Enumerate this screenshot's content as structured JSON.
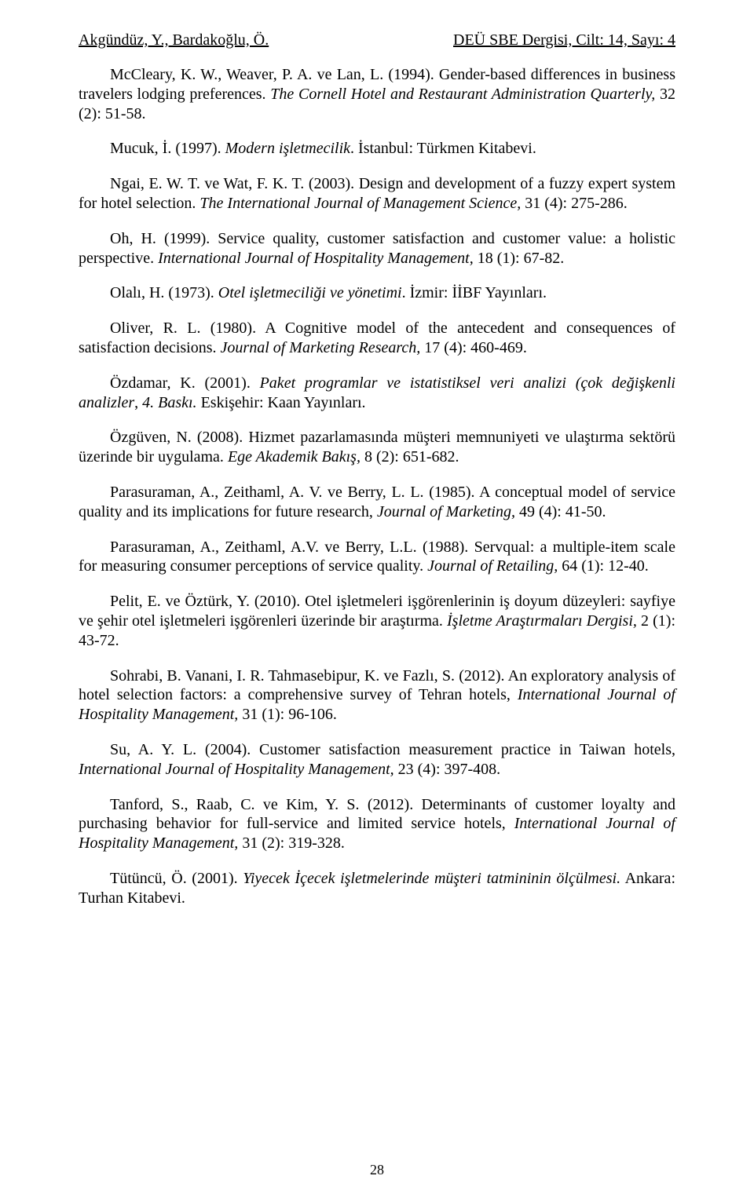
{
  "header": {
    "left": "Akgündüz, Y., Bardakoğlu, Ö.",
    "right": "DEÜ SBE Dergisi, Cilt:  14, Sayı: 4"
  },
  "refs": {
    "r1a": "McCleary, K. W., Weaver, P. A. ve Lan, L. (1994). Gender-based differences in business travelers lodging preferences. ",
    "r1b": "The Cornell Hotel and Restaurant Administration Quarterly,",
    "r1c": " 32 (2): 51-58.",
    "r2a": "Mucuk, İ. (1997). ",
    "r2b": "Modern işletmecilik",
    "r2c": ". İstanbul: Türkmen Kitabevi.",
    "r3a": "Ngai, E. W. T. ve Wat, F. K. T. (2003). Design and development of a fuzzy expert system for hotel selection. ",
    "r3b": "The International Journal of Management Science,",
    "r3c": " 31 (4): 275-286.",
    "r4a": "Oh, H. (1999). Service quality, customer satisfaction and customer value: a holistic perspective. ",
    "r4b": "International Journal of Hospitality Management,",
    "r4c": " 18 (1): 67-82.",
    "r5a": "Olalı, H. (1973). ",
    "r5b": "Otel işletmeciliği ve yönetimi",
    "r5c": ". İzmir: İİBF Yayınları.",
    "r6a": "Oliver, R. L. (1980). A Cognitive model of the antecedent and consequences of satisfaction decisions. ",
    "r6b": "Journal of Marketing Research,",
    "r6c": " 17 (4): 460-469.",
    "r7a": "Özdamar, K. (2001). ",
    "r7b": "Paket programlar ve istatistiksel veri analizi (çok değişkenli analizler",
    "r7c": ", ",
    "r7d": "4. Baskı.",
    "r7e": " Eskişehir: Kaan Yayınları.",
    "r8a": "Özgüven, N. (2008). Hizmet pazarlamasında müşteri memnuniyeti ve ulaştırma sektörü üzerinde bir uygulama. ",
    "r8b": "Ege Akademik Bakış,",
    "r8c": " 8 (2): 651-682.",
    "r9a": "Parasuraman, A., Zeithaml, A. V. ve Berry, L. L. (1985). A conceptual model of service quality and its implications for future research, ",
    "r9b": "Journal of Marketing,",
    "r9c": " 49 (4): 41-50.",
    "r10a": "Parasuraman, A., Zeithaml, A.V. ve Berry, L.L. (1988). Servqual: a multiple-item scale for measuring consumer perceptions of service quality. ",
    "r10b": "Journal of Retailing,",
    "r10c": " 64 (1): 12-40.",
    "r11a": "Pelit, E. ve Öztürk, Y. (2010). Otel işletmeleri işgörenlerinin iş doyum düzeyleri: sayfiye ve şehir otel işletmeleri işgörenleri üzerinde bir araştırma. ",
    "r11b": "İşletme Araştırmaları Dergisi,",
    "r11c": " 2 (1): 43-72.",
    "r12a": "Sohrabi, B. Vanani, I. R. Tahmasebipur, K. ve Fazlı, S. (2012). An exploratory analysis of hotel selection factors: a comprehensive survey of Tehran hotels, ",
    "r12b": "International Journal of Hospitality Management,",
    "r12c": " 31 (1): 96-106.",
    "r13a": "Su, A. Y. L. (2004). Customer satisfaction measurement practice in Taiwan hotels, ",
    "r13b": "International Journal of Hospitality Management,",
    "r13c": " 23 (4): 397-408.",
    "r14a": "Tanford, S., Raab, C. ve Kim, Y. S. (2012). Determinants of customer loyalty and purchasing behavior for full-service and limited service hotels, ",
    "r14b": "International Journal of Hospitality Management,",
    "r14c": " 31 (2): 319-328.",
    "r15a": "Tütüncü, Ö. (2001). ",
    "r15b": "Yiyecek İçecek işletmelerinde müşteri tatmininin ölçülmesi.",
    "r15c": " Ankara: Turhan Kitabevi."
  },
  "pagenum": "28"
}
